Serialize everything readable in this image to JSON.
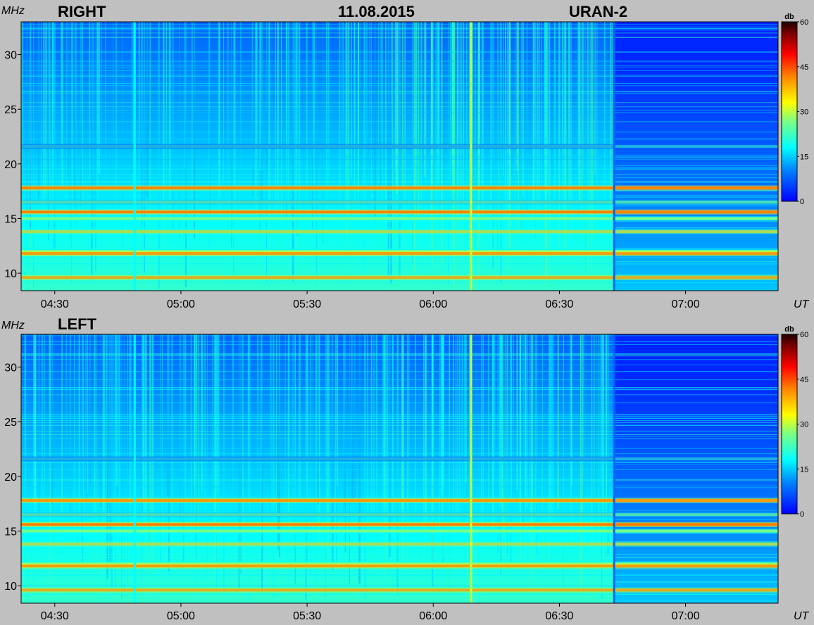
{
  "header": {
    "date": "11.08.2015",
    "instrument": "URAN-2"
  },
  "chart_data": [
    {
      "type": "heatmap",
      "title": "RIGHT",
      "ylabel": "MHz",
      "xlabel": "UT",
      "x_ticks": [
        "04:30",
        "05:00",
        "05:30",
        "06:00",
        "06:30",
        "07:00"
      ],
      "x_range": [
        "04:22",
        "07:22"
      ],
      "y_ticks": [
        10,
        15,
        20,
        25,
        30
      ],
      "ylim": [
        8.4,
        33.0
      ],
      "colorbar": {
        "label": "db",
        "range": [
          0,
          60
        ],
        "ticks": [
          0,
          15,
          30,
          45,
          60
        ]
      },
      "bands": [
        {
          "freq": 17.8,
          "db": 48
        },
        {
          "freq": 15.6,
          "db": 48
        },
        {
          "freq": 15.0,
          "db": 32
        },
        {
          "freq": 13.8,
          "db": 38
        },
        {
          "freq": 12.0,
          "db": 32
        },
        {
          "freq": 11.8,
          "db": 46
        },
        {
          "freq": 9.6,
          "db": 44
        },
        {
          "freq": 21.6,
          "db": 22
        },
        {
          "freq": 16.5,
          "db": 28
        }
      ],
      "events": [
        {
          "time": "06:09",
          "db": 30
        },
        {
          "time": "04:49",
          "db": 18
        },
        {
          "time": "06:43",
          "db": 8
        }
      ]
    },
    {
      "type": "heatmap",
      "title": "LEFT",
      "ylabel": "MHz",
      "xlabel": "UT",
      "x_ticks": [
        "04:30",
        "05:00",
        "05:30",
        "06:00",
        "06:30",
        "07:00"
      ],
      "x_range": [
        "04:22",
        "07:22"
      ],
      "y_ticks": [
        10,
        15,
        20,
        25,
        30
      ],
      "ylim": [
        8.4,
        33.0
      ],
      "colorbar": {
        "label": "db",
        "range": [
          0,
          60
        ],
        "ticks": [
          0,
          15,
          30,
          45,
          60
        ]
      },
      "bands": [
        {
          "freq": 17.8,
          "db": 46
        },
        {
          "freq": 15.6,
          "db": 48
        },
        {
          "freq": 15.0,
          "db": 32
        },
        {
          "freq": 13.8,
          "db": 38
        },
        {
          "freq": 12.0,
          "db": 32
        },
        {
          "freq": 11.8,
          "db": 46
        },
        {
          "freq": 9.6,
          "db": 44
        },
        {
          "freq": 21.6,
          "db": 22
        },
        {
          "freq": 16.5,
          "db": 28
        }
      ],
      "events": [
        {
          "time": "06:09",
          "db": 30
        },
        {
          "time": "04:49",
          "db": 18
        },
        {
          "time": "06:43",
          "db": 8
        }
      ]
    }
  ]
}
